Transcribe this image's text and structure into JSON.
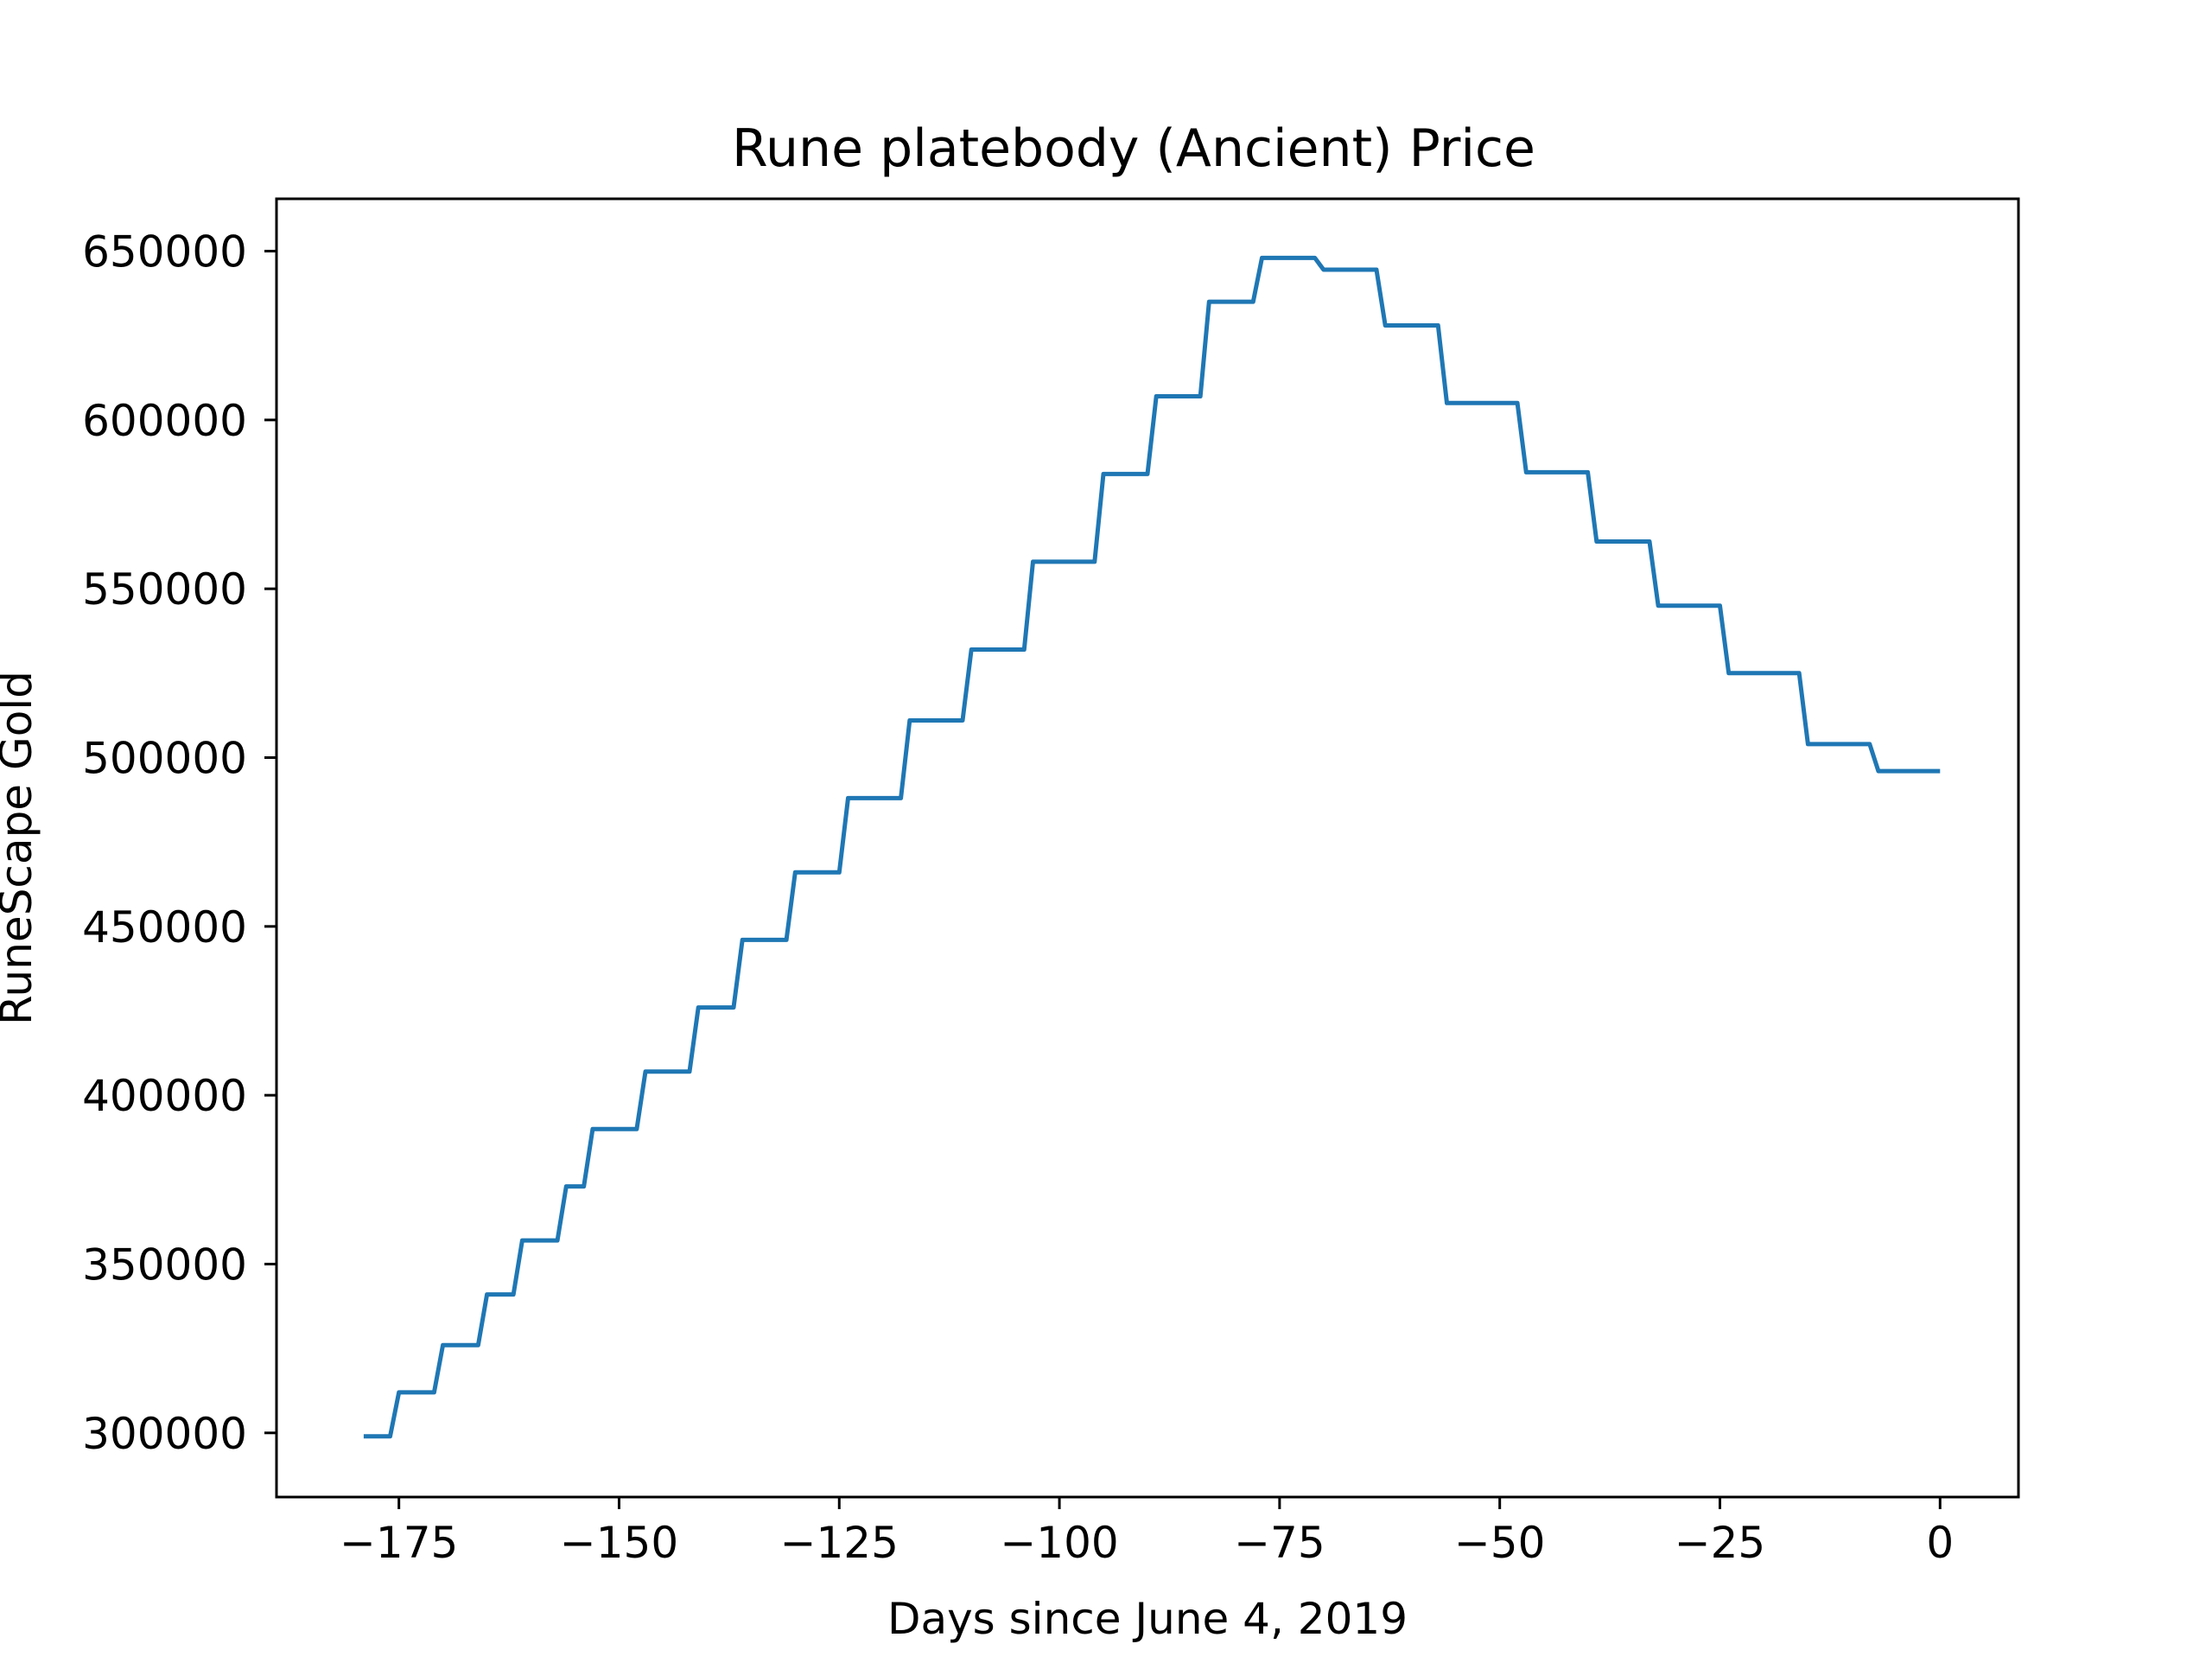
{
  "chart_data": {
    "type": "line",
    "title": "Rune platebody (Ancient) Price",
    "xlabel": "Days since June 4, 2019",
    "ylabel": "RuneScape Gold",
    "xlim": [
      -188.9,
      8.9
    ],
    "ylim": [
      281000,
      665500
    ],
    "xticks": [
      -175,
      -150,
      -125,
      -100,
      -75,
      -50,
      -25,
      0
    ],
    "xtick_labels": [
      "−175",
      "−150",
      "−125",
      "−100",
      "−75",
      "−50",
      "−25",
      "0"
    ],
    "yticks": [
      300000,
      350000,
      400000,
      450000,
      500000,
      550000,
      600000,
      650000
    ],
    "ytick_labels": [
      "300000",
      "350000",
      "400000",
      "450000",
      "500000",
      "550000",
      "600000",
      "650000"
    ],
    "grid": false,
    "line_color": "#1f77b4",
    "series": [
      {
        "x": [
          -179,
          -176,
          -175,
          -171,
          -170,
          -166,
          -165,
          -162,
          -161,
          -157,
          -156,
          -154,
          -153,
          -148,
          -147,
          -142,
          -141,
          -137,
          -136,
          -131,
          -130,
          -125,
          -124,
          -118,
          -117,
          -111,
          -110,
          -104,
          -103,
          -96,
          -95,
          -90,
          -89,
          -84,
          -83,
          -78,
          -77,
          -71,
          -70,
          -64,
          -63,
          -57,
          -56,
          -48,
          -47,
          -40,
          -39,
          -33,
          -32,
          -25,
          -24,
          -16,
          -15,
          -8,
          -7,
          0
        ],
        "y": [
          299000,
          299000,
          312000,
          312000,
          326000,
          326000,
          341000,
          341000,
          357000,
          357000,
          373000,
          373000,
          390000,
          390000,
          407000,
          407000,
          426000,
          426000,
          446000,
          446000,
          466000,
          466000,
          488000,
          488000,
          511000,
          511000,
          532000,
          532000,
          558000,
          558000,
          584000,
          584000,
          607000,
          607000,
          635000,
          635000,
          648000,
          648000,
          644500,
          644500,
          628000,
          628000,
          605000,
          605000,
          584500,
          584500,
          564000,
          564000,
          545000,
          545000,
          525000,
          525000,
          504000,
          504000,
          496000,
          496000
        ]
      }
    ]
  }
}
